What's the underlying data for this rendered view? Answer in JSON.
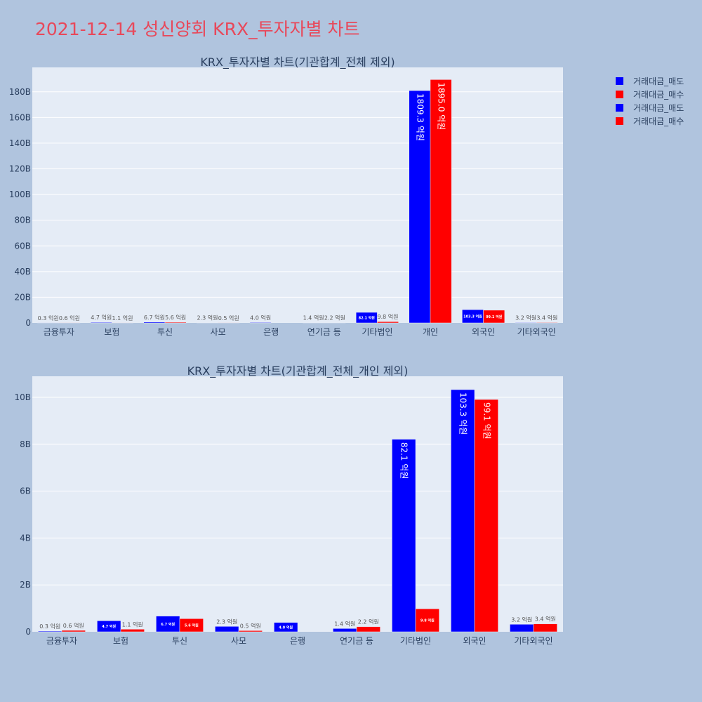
{
  "page": {
    "title": "2021-12-14 성신양회 KRX_투자자별 차트"
  },
  "legend": {
    "items": [
      {
        "label": "거래대금_매도",
        "color": "#0000ff"
      },
      {
        "label": "거래대금_매수",
        "color": "#ff0000"
      },
      {
        "label": "거래대금_매도",
        "color": "#0000ff"
      },
      {
        "label": "거래대금_매수",
        "color": "#ff0000"
      }
    ]
  },
  "chart_data": [
    {
      "type": "bar",
      "title": "KRX_투자자별 차트(기관합계_전체 제외)",
      "categories": [
        "금융투자",
        "보험",
        "투신",
        "사모",
        "은행",
        "연기금 등",
        "기타법인",
        "개인",
        "외국인",
        "기타외국인"
      ],
      "series": [
        {
          "name": "거래대금_매도",
          "color": "#0000ff",
          "values": [
            0.03,
            0.47,
            0.67,
            0.23,
            0.4,
            0.14,
            8.21,
            180.93,
            10.33,
            0.32
          ],
          "labels": [
            "0.3 억원",
            "4.7 억원",
            "6.7 억원",
            "2.3 억원",
            "4.0 억원",
            "1.4 억원",
            "82.1 억원",
            "1809.3 억원",
            "103.3 억원",
            "3.2 억원"
          ]
        },
        {
          "name": "거래대금_매수",
          "color": "#ff0000",
          "values": [
            0.06,
            0.11,
            0.56,
            0.05,
            0,
            0.22,
            0.98,
            189.5,
            9.91,
            0.34
          ],
          "labels": [
            "0.6 억원",
            "1.1 억원",
            "5.6 억원",
            "0.5 억원",
            "",
            "2.2 억원",
            "9.8 억원",
            "1895.0 억원",
            "99.1 억원",
            "3.4 억원"
          ]
        }
      ],
      "yunit": "B",
      "ylim": [
        0,
        199
      ],
      "yticks": [
        0,
        20,
        40,
        60,
        80,
        100,
        120,
        140,
        160,
        180
      ],
      "ytick_labels": [
        "0",
        "20B",
        "40B",
        "60B",
        "80B",
        "100B",
        "120B",
        "140B",
        "160B",
        "180B"
      ],
      "grid": true
    },
    {
      "type": "bar",
      "title": "KRX_투자자별 차트(기관합계_전체_개인 제외)",
      "categories": [
        "금융투자",
        "보험",
        "투신",
        "사모",
        "은행",
        "연기금 등",
        "기타법인",
        "외국인",
        "기타외국인"
      ],
      "series": [
        {
          "name": "거래대금_매도",
          "color": "#0000ff",
          "values": [
            0.03,
            0.47,
            0.67,
            0.23,
            0.4,
            0.14,
            8.21,
            10.33,
            0.32
          ],
          "labels": [
            "0.3 억원",
            "4.7 억원",
            "6.7 억원",
            "2.3 억원",
            "4.0 억원",
            "1.4 억원",
            "82.1 억원",
            "103.3 억원",
            "3.2 억원"
          ]
        },
        {
          "name": "거래대금_매수",
          "color": "#ff0000",
          "values": [
            0.06,
            0.11,
            0.56,
            0.05,
            0,
            0.22,
            0.98,
            9.91,
            0.34
          ],
          "labels": [
            "0.6 억원",
            "1.1 억원",
            "5.6 억원",
            "0.5 억원",
            "",
            "2.2 억원",
            "9.8 억원",
            "99.1 억원",
            "3.4 억원"
          ]
        }
      ],
      "yunit": "B",
      "ylim": [
        0,
        10.9
      ],
      "yticks": [
        0,
        2,
        4,
        6,
        8,
        10
      ],
      "ytick_labels": [
        "0",
        "2B",
        "4B",
        "6B",
        "8B",
        "10B"
      ],
      "grid": true
    }
  ]
}
